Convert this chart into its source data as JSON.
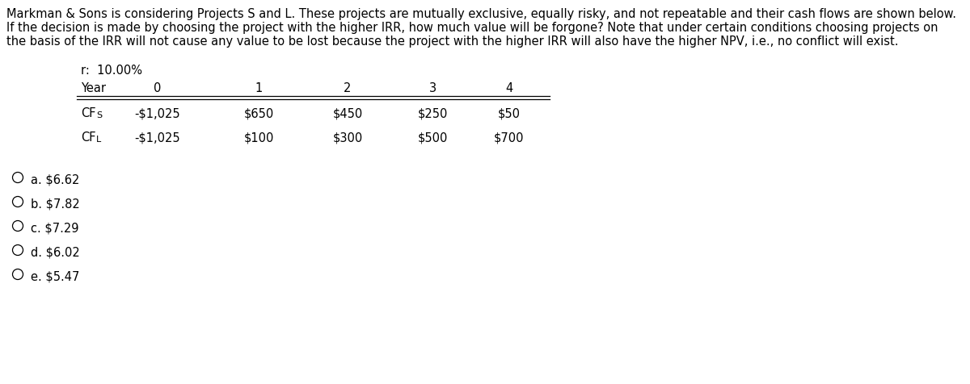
{
  "title_lines": [
    "Markman & Sons is considering Projects S and L. These projects are mutually exclusive, equally risky, and not repeatable and their cash flows are shown below.",
    "If the decision is made by choosing the project with the higher IRR, how much value will be forgone? Note that under certain conditions choosing projects on",
    "the basis of the IRR will not cause any value to be lost because the project with the higher IRR will also have the higher NPV, i.e., no conflict will exist."
  ],
  "rate_label": "r:  10.00%",
  "table_headers": [
    "Year",
    "0",
    "1",
    "2",
    "3",
    "4"
  ],
  "row_cfs_label": "CFS",
  "row_cfl_label": "CFL",
  "row_cfs_values": [
    "-$1,025",
    "$650",
    "$450",
    "$250",
    "$50"
  ],
  "row_cfl_values": [
    "-$1,025",
    "$100",
    "$300",
    "$500",
    "$700"
  ],
  "options": [
    "a. $6.62",
    "b. $7.82",
    "c. $7.29",
    "d. $6.02",
    "e. $5.47"
  ],
  "bg_color": "#ffffff",
  "text_color": "#000000",
  "font_size_title": 10.5,
  "font_size_table": 10.5,
  "font_size_options": 10.5
}
